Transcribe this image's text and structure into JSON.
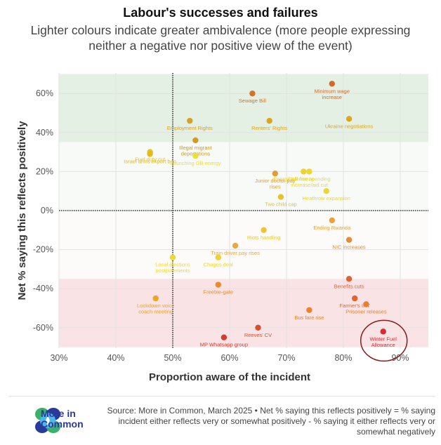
{
  "header": {
    "title": "Labour's successes and failures",
    "subtitle": "Lighter colours indicate greater ambivalence (more people expressing neither a negative nor positive view of the event)"
  },
  "chart_data": {
    "type": "scatter",
    "title": "Labour's successes and failures",
    "subtitle": "Lighter colours indicate greater ambivalence (more people expressing neither a negative nor positive view of the event)",
    "xlabel": "Proportion aware of the incident",
    "ylabel": "Net % saying this reflects positively",
    "xlim": [
      30,
      95
    ],
    "ylim": [
      -70,
      70
    ],
    "x_ticks": [
      30,
      40,
      50,
      60,
      70,
      80,
      90
    ],
    "x_tick_labels": [
      "30%",
      "40%",
      "50%",
      "60%",
      "70%",
      "80%",
      "90%"
    ],
    "y_ticks": [
      60,
      40,
      20,
      0,
      -20,
      -40,
      -60
    ],
    "y_tick_labels": [
      "60%",
      "40%",
      "20%",
      "0%",
      "-20%",
      "-40%",
      "-60%"
    ],
    "grid": true,
    "reference_lines": {
      "x": 50,
      "y": 0,
      "style": "dotted"
    },
    "bands": [
      {
        "name": "positive",
        "from": 35,
        "to": 70,
        "color": "#e4f0e4"
      },
      {
        "name": "neutral-positive",
        "from": 0,
        "to": 35,
        "color": "#f7faf6"
      },
      {
        "name": "neutral-negative",
        "from": -35,
        "to": 0,
        "color": "#fcfbfa"
      },
      {
        "name": "negative",
        "from": -70,
        "to": -35,
        "color": "#fae3e5"
      }
    ],
    "points": [
      {
        "label": "Minimum wage increase",
        "x": 78,
        "y": 65,
        "color": "#d2692a",
        "label_lines": [
          "Minimum wage",
          "increase"
        ],
        "label_pos": "below"
      },
      {
        "label": "Sewage Bill",
        "x": 64,
        "y": 60,
        "color": "#d2752a",
        "label_lines": [
          "Sewage Bill"
        ],
        "label_pos": "below"
      },
      {
        "label": "Ukraine negotiations",
        "x": 81,
        "y": 47,
        "color": "#dca522",
        "label_lines": [
          "Ukraine negotiations"
        ],
        "label_pos": "below"
      },
      {
        "label": "Employment Rights",
        "x": 53,
        "y": 46,
        "color": "#d9a027",
        "label_lines": [
          "Employment Rights"
        ],
        "label_pos": "below"
      },
      {
        "label": "Renters' Rights",
        "x": 67,
        "y": 46,
        "color": "#dca523",
        "label_lines": [
          "Renters' Rights"
        ],
        "label_pos": "below"
      },
      {
        "label": "Illegal migrant deportations",
        "x": 54,
        "y": 36,
        "color": "#d39a22",
        "label_lines": [
          "Illegal migrant",
          "deportations"
        ],
        "label_pos": "below"
      },
      {
        "label": "Fuel duty cut",
        "x": 46,
        "y": 30,
        "color": "#e6c21a",
        "label_lines": [
          "Fuel duty cut"
        ],
        "label_pos": "below"
      },
      {
        "label": "Israel arms export ban",
        "x": 46,
        "y": 29,
        "color": "#e3b91c",
        "label_lines": [
          "Israel arms export ban"
        ],
        "label_pos": "below"
      },
      {
        "label": "Launching GB energy",
        "x": 54,
        "y": 28,
        "color": "#eee12c",
        "label_lines": [
          "Launching GB energy"
        ],
        "label_pos": "below"
      },
      {
        "label": "Defence spending increase/aid cut",
        "x": 74,
        "y": 20,
        "color": "#eed92a",
        "label_lines": [
          "Defence spending",
          "increase/aid cut"
        ],
        "label_pos": "below"
      },
      {
        "label": "Energy bill freeze",
        "x": 73,
        "y": 20,
        "color": "#ecd42a",
        "label_lines": [
          "Energy bill freeze"
        ],
        "label_pos": "below-left"
      },
      {
        "label": "Junior doctor pay rises",
        "x": 68,
        "y": 19,
        "color": "#e59a35",
        "label_lines": [
          "Junior doctor pay",
          "rises"
        ],
        "label_pos": "below"
      },
      {
        "label": "Heathrow expansion",
        "x": 77,
        "y": 10,
        "color": "#eed72c",
        "label_lines": [
          "Heathrow expansion"
        ],
        "label_pos": "below"
      },
      {
        "label": "Two child cap",
        "x": 69,
        "y": 7,
        "color": "#e7c22c",
        "label_lines": [
          "Two child cap"
        ],
        "label_pos": "below"
      },
      {
        "label": "Ending Rwanda",
        "x": 78,
        "y": -5,
        "color": "#eda038",
        "label_lines": [
          "Ending Rwanda"
        ],
        "label_pos": "below"
      },
      {
        "label": "Riots handling",
        "x": 66,
        "y": -10,
        "color": "#ebc634",
        "label_lines": [
          "Riots handling"
        ],
        "label_pos": "below"
      },
      {
        "label": "NIC increases",
        "x": 81,
        "y": -15,
        "color": "#e88a3a",
        "label_lines": [
          "NIC increases"
        ],
        "label_pos": "below"
      },
      {
        "label": "Train driver pay rises",
        "x": 61,
        "y": -18,
        "color": "#eaa642",
        "label_lines": [
          "Train driver pay rises"
        ],
        "label_pos": "below"
      },
      {
        "label": "Local elections postponements",
        "x": 50,
        "y": -24,
        "color": "#eed837",
        "label_lines": [
          "Local elections",
          "postpotements"
        ],
        "label_pos": "below"
      },
      {
        "label": "Chagos deal",
        "x": 58,
        "y": -24,
        "color": "#ecd136",
        "label_lines": [
          "Chagos deal"
        ],
        "label_pos": "below"
      },
      {
        "label": "Benefits cuts",
        "x": 81,
        "y": -35,
        "color": "#df6232",
        "label_lines": [
          "Benefits cuts"
        ],
        "label_pos": "below"
      },
      {
        "label": "Freebie-gate",
        "x": 58,
        "y": -38,
        "color": "#e98b2c",
        "label_lines": [
          "Freebie-gate"
        ],
        "label_pos": "below"
      },
      {
        "label": "Lockdown voice coach meeting",
        "x": 47,
        "y": -45,
        "color": "#eea427",
        "label_lines": [
          "Lockdown voice",
          "coach meeting"
        ],
        "label_pos": "below"
      },
      {
        "label": "Farmer's IHT",
        "x": 82,
        "y": -45,
        "color": "#de6630",
        "label_lines": [
          "Farmer's IHT"
        ],
        "label_pos": "below"
      },
      {
        "label": "Prisoner releases",
        "x": 84,
        "y": -48,
        "color": "#e5812e",
        "label_lines": [
          "Prisoner releases"
        ],
        "label_pos": "below"
      },
      {
        "label": "Bus fare rise",
        "x": 74,
        "y": -51,
        "color": "#e9842c",
        "label_lines": [
          "Bus fare rise"
        ],
        "label_pos": "below"
      },
      {
        "label": "Reeves' CV",
        "x": 65,
        "y": -60,
        "color": "#d9502c",
        "label_lines": [
          "Reeves' CV"
        ],
        "label_pos": "below"
      },
      {
        "label": "Winter Fuel Allowance",
        "x": 87,
        "y": -62,
        "color": "#d92a33",
        "label_lines": [
          "Winter Fuel",
          "Allowance"
        ],
        "label_pos": "below",
        "highlighted": true
      },
      {
        "label": "MP Whatsapp group",
        "x": 59,
        "y": -65,
        "color": "#d53a2a",
        "label_lines": [
          "MP Whatsapp group"
        ],
        "label_pos": "below"
      }
    ],
    "highlight_color": "#8b1a1a"
  },
  "footer": {
    "logo_text_line1": "More in",
    "logo_text_line2": "Common",
    "source": "Source: More in Common, March 2025 • Net % saying this reflects positively = % saying incident either reflects very or somewhat positively - % saying it either reflects very or somewhat negatively"
  }
}
